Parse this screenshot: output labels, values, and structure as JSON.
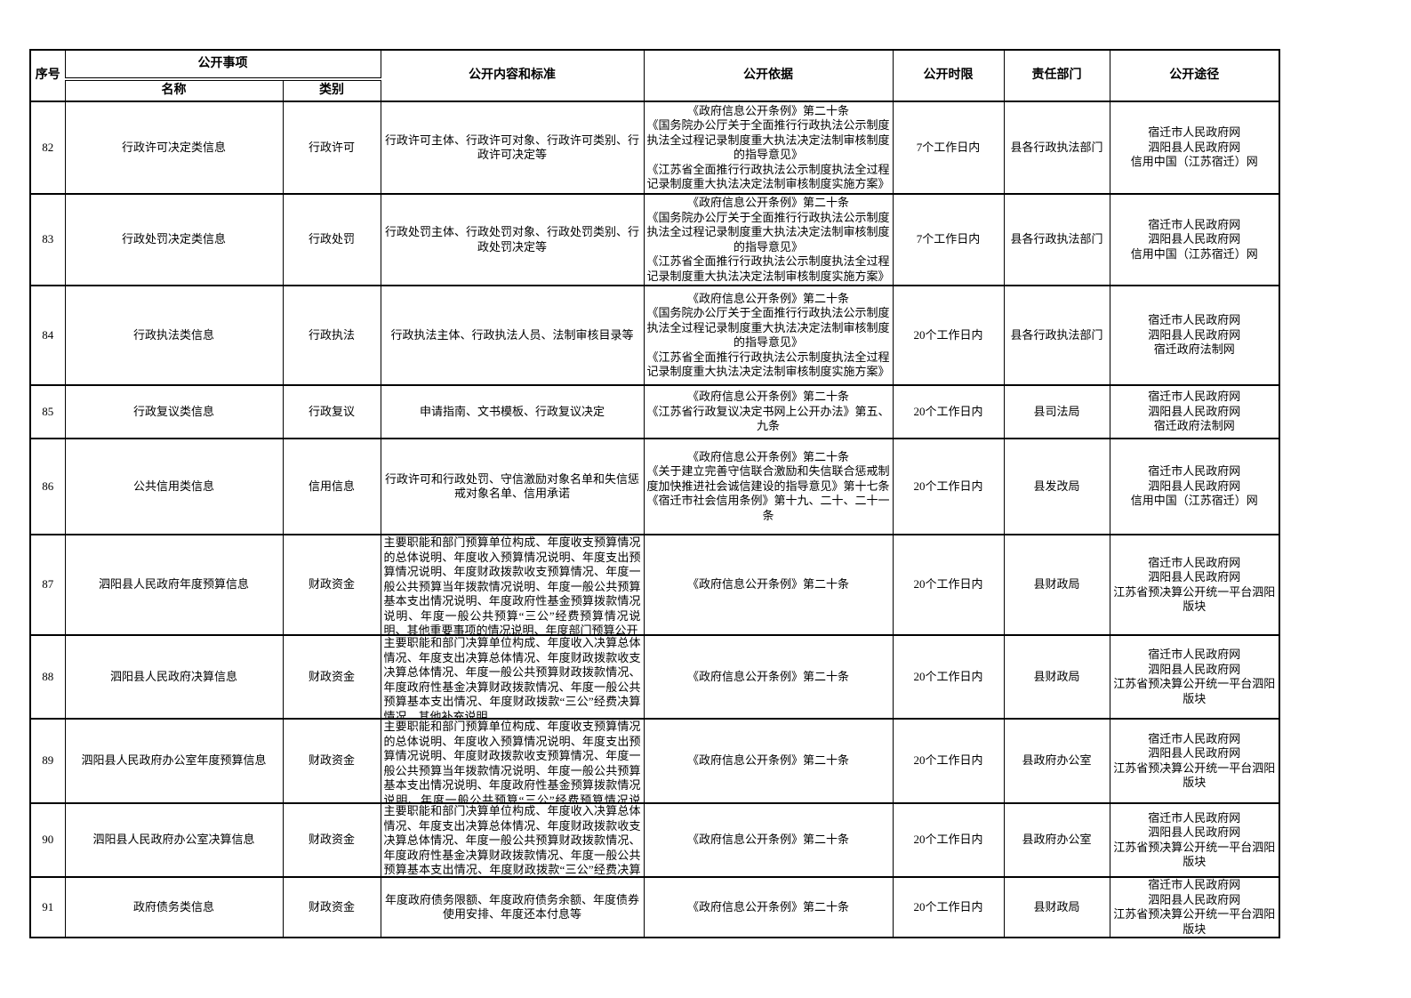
{
  "table": {
    "headers": {
      "col_index": "序号",
      "group_disclosure_items": "公开事项",
      "sub_name": "名称",
      "sub_category": "类别",
      "col_content": "公开内容和标准",
      "col_basis": "公开依据",
      "col_time_limit": "公开时限",
      "col_department": "责任部门",
      "col_channels": "公开途径"
    },
    "rows": [
      {
        "index": "82",
        "name": "行政许可决定类信息",
        "category": "行政许可",
        "content": "行政许可主体、行政许可对象、行政许可类别、行政许可决定等",
        "basis": "《政府信息公开条例》第二十条\n《国务院办公厅关于全面推行行政执法公示制度执法全过程记录制度重大执法决定法制审核制度的指导意见》\n《江苏省全面推行行政执法公示制度执法全过程记录制度重大执法决定法制审核制度实施方案》",
        "time_limit": "7个工作日内",
        "department": "县各行政执法部门",
        "channels": "宿迁市人民政府网\n泗阳县人民政府网\n信用中国（江苏宿迁）网"
      },
      {
        "index": "83",
        "name": "行政处罚决定类信息",
        "category": "行政处罚",
        "content": "行政处罚主体、行政处罚对象、行政处罚类别、行政处罚决定等",
        "basis": "《政府信息公开条例》第二十条\n《国务院办公厅关于全面推行行政执法公示制度执法全过程记录制度重大执法决定法制审核制度的指导意见》\n《江苏省全面推行行政执法公示制度执法全过程记录制度重大执法决定法制审核制度实施方案》",
        "time_limit": "7个工作日内",
        "department": "县各行政执法部门",
        "channels": "宿迁市人民政府网\n泗阳县人民政府网\n信用中国（江苏宿迁）网"
      },
      {
        "index": "84",
        "name": "行政执法类信息",
        "category": "行政执法",
        "content": "行政执法主体、行政执法人员、法制审核目录等",
        "basis": "《政府信息公开条例》第二十条\n《国务院办公厅关于全面推行行政执法公示制度执法全过程记录制度重大执法决定法制审核制度的指导意见》\n《江苏省全面推行行政执法公示制度执法全过程记录制度重大执法决定法制审核制度实施方案》",
        "time_limit": "20个工作日内",
        "department": "县各行政执法部门",
        "channels": "宿迁市人民政府网\n泗阳县人民政府网\n宿迁政府法制网"
      },
      {
        "index": "85",
        "name": "行政复议类信息",
        "category": "行政复议",
        "content": "申请指南、文书模板、行政复议决定",
        "basis": "《政府信息公开条例》第二十条\n《江苏省行政复议决定书网上公开办法》第五、九条",
        "time_limit": "20个工作日内",
        "department": "县司法局",
        "channels": "宿迁市人民政府网\n泗阳县人民政府网\n宿迁政府法制网"
      },
      {
        "index": "86",
        "name": "公共信用类信息",
        "category": "信用信息",
        "content": "行政许可和行政处罚、守信激励对象名单和失信惩戒对象名单、信用承诺",
        "basis": "《政府信息公开条例》第二十条\n《关于建立完善守信联合激励和失信联合惩戒制度加快推进社会诚信建设的指导意见》第十七条\n《宿迁市社会信用条例》第十九、二十、二十一条",
        "time_limit": "20个工作日内",
        "department": "县发改局",
        "channels": "宿迁市人民政府网\n泗阳县人民政府网\n信用中国（江苏宿迁）网"
      },
      {
        "index": "87",
        "name": "泗阳县人民政府年度预算信息",
        "category": "财政资金",
        "content": "主要职能和部门预算单位构成、年度收支预算情况的总体说明、年度收入预算情况说明、年度支出预算情况说明、年度财政拨款收支预算情况、年度一般公共预算当年拨款情况说明、年度一般公共预算基本支出情况说明、年度政府性基金预算拨款情况说明、年度一般公共预算“三公”经费预算情况说明、其他重要事项的情况说明、年度部门预算公开",
        "basis": "《政府信息公开条例》第二十条",
        "time_limit": "20个工作日内",
        "department": "县财政局",
        "channels": "宿迁市人民政府网\n泗阳县人民政府网\n江苏省预决算公开统一平台泗阳版块"
      },
      {
        "index": "88",
        "name": "泗阳县人民政府决算信息",
        "category": "财政资金",
        "content": "主要职能和部门决算单位构成、年度收入决算总体情况、年度支出决算总体情况、年度财政拨款收支决算总体情况、年度一般公共预算财政拨款情况、年度政府性基金决算财政拨款情况、年度一般公共预算基本支出情况、年度财政拨款“三公”经费决算情况、其他补充说明",
        "basis": "《政府信息公开条例》第二十条",
        "time_limit": "20个工作日内",
        "department": "县财政局",
        "channels": "宿迁市人民政府网\n泗阳县人民政府网\n江苏省预决算公开统一平台泗阳版块"
      },
      {
        "index": "89",
        "name": "泗阳县人民政府办公室年度预算信息",
        "category": "财政资金",
        "content": "主要职能和部门预算单位构成、年度收支预算情况的总体说明、年度收入预算情况说明、年度支出预算情况说明、年度财政拨款收支预算情况、年度一般公共预算当年拨款情况说明、年度一般公共预算基本支出情况说明、年度政府性基金预算拨款情况说明、年度一般公共预算“三公”经费预算情况说明、其他重要事项的情况说明、年度部门预算公开",
        "basis": "《政府信息公开条例》第二十条",
        "time_limit": "20个工作日内",
        "department": "县政府办公室",
        "channels": "宿迁市人民政府网\n泗阳县人民政府网\n江苏省预决算公开统一平台泗阳版块"
      },
      {
        "index": "90",
        "name": "泗阳县人民政府办公室决算信息",
        "category": "财政资金",
        "content": "主要职能和部门决算单位构成、年度收入决算总体情况、年度支出决算总体情况、年度财政拨款收支决算总体情况、年度一般公共预算财政拨款情况、年度政府性基金决算财政拨款情况、年度一般公共预算基本支出情况、年度财政拨款“三公”经费决算情况、其他补充说明",
        "basis": "《政府信息公开条例》第二十条",
        "time_limit": "20个工作日内",
        "department": "县政府办公室",
        "channels": "宿迁市人民政府网\n泗阳县人民政府网\n江苏省预决算公开统一平台泗阳版块"
      },
      {
        "index": "91",
        "name": "政府债务类信息",
        "category": "财政资金",
        "content": "年度政府债务限额、年度政府债务余额、年度债券使用安排、年度还本付息等",
        "basis": "《政府信息公开条例》第二十条",
        "time_limit": "20个工作日内",
        "department": "县财政局",
        "channels": "宿迁市人民政府网\n泗阳县人民政府网\n江苏省预决算公开统一平台泗阳版块"
      }
    ]
  }
}
